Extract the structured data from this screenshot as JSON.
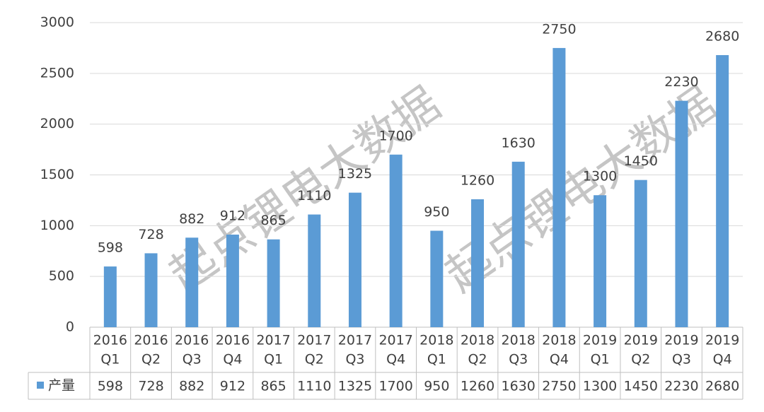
{
  "chart_data": {
    "type": "bar",
    "watermark": "起点锂电大数据",
    "categories": [
      [
        "2016",
        "Q1"
      ],
      [
        "2016",
        "Q2"
      ],
      [
        "2016",
        "Q3"
      ],
      [
        "2016",
        "Q4"
      ],
      [
        "2017",
        "Q1"
      ],
      [
        "2017",
        "Q2"
      ],
      [
        "2017",
        "Q3"
      ],
      [
        "2017",
        "Q4"
      ],
      [
        "2018",
        "Q1"
      ],
      [
        "2018",
        "Q2"
      ],
      [
        "2018",
        "Q3"
      ],
      [
        "2018",
        "Q4"
      ],
      [
        "2019",
        "Q1"
      ],
      [
        "2019",
        "Q2"
      ],
      [
        "2019",
        "Q3"
      ],
      [
        "2019",
        "Q4"
      ]
    ],
    "series": [
      {
        "name": "产量",
        "color": "#5b9bd5",
        "values": [
          598,
          728,
          882,
          912,
          865,
          1110,
          1325,
          1700,
          950,
          1260,
          1630,
          2750,
          1300,
          1450,
          2230,
          2680
        ]
      }
    ],
    "ylim": [
      0,
      3000
    ],
    "yticks": [
      0,
      500,
      1000,
      1500,
      2000,
      2500,
      3000
    ],
    "grid": true
  }
}
